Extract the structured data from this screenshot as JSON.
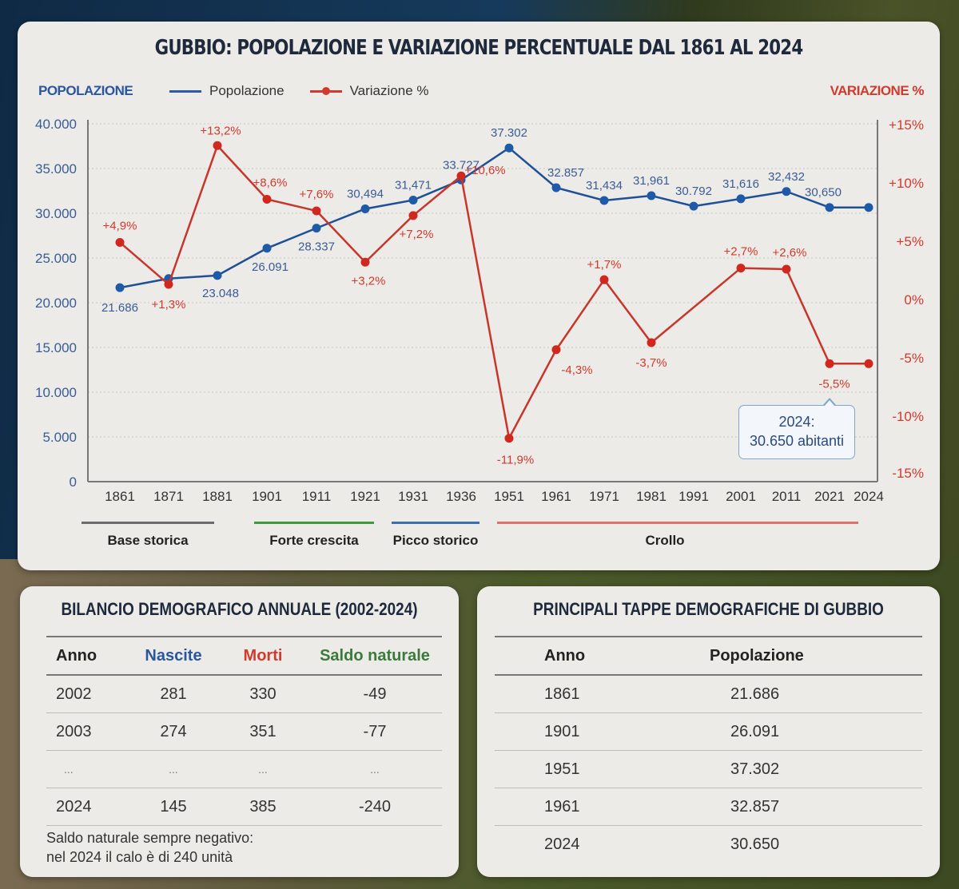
{
  "title": "GUBBIO: POPOLAZIONE E VARIAZIONE PERCENTUALE DAL 1861 AL 2024",
  "left_axis_title": "POPOLAZIONE",
  "right_axis_title": "VARIAZIONE %",
  "legend": {
    "population": "Popolazione",
    "variation": "Variazione %"
  },
  "callout": {
    "line1": "2024:",
    "line2": "30.650 abitanti"
  },
  "phases": [
    {
      "label": "Base storica",
      "color": "#6b6b6b"
    },
    {
      "label": "Forte crescita",
      "color": "#3d9a3d"
    },
    {
      "label": "Picco storico",
      "color": "#3a6fb0"
    },
    {
      "label": "Crollo",
      "color": "#e07070"
    }
  ],
  "colors": {
    "population": "#1f5aa8",
    "variation": "#d23a2e"
  },
  "chart_data": {
    "type": "line",
    "title": "GUBBIO: POPOLAZIONE E VARIAZIONE PERCENTUALE DAL 1861 AL 2024",
    "xlabel": "",
    "ylabel": "POPOLAZIONE",
    "y2label": "VARIAZIONE %",
    "categories": [
      "1861",
      "1871",
      "1881",
      "1901",
      "1911",
      "1921",
      "1931",
      "1936",
      "1951",
      "1961",
      "1971",
      "1981",
      "1991",
      "2001",
      "2011",
      "2021",
      "2024"
    ],
    "series": [
      {
        "name": "Popolazione",
        "axis": "left",
        "values": [
          21686,
          22700,
          23048,
          26091,
          28337,
          30494,
          31471,
          33727,
          37302,
          32857,
          31434,
          31961,
          30792,
          31616,
          32432,
          30650,
          30650
        ],
        "labels": [
          "21.686",
          "",
          "23.048",
          "26.091",
          "28.337",
          "30,494",
          "31,471",
          "33.727",
          "37.302",
          "32.857",
          "31,434",
          "31,961",
          "30.792",
          "31,616",
          "32,432",
          "30,650",
          ""
        ]
      },
      {
        "name": "Variazione %",
        "axis": "right",
        "values": [
          4.9,
          1.3,
          13.2,
          8.6,
          7.6,
          3.2,
          7.2,
          10.6,
          -11.9,
          -4.3,
          1.7,
          -3.7,
          null,
          2.7,
          2.6,
          -5.5,
          -5.5
        ],
        "labels": [
          "+4,9%",
          "+1,3%",
          "+13,2%",
          "+8,6%",
          "+7,6%",
          "+3,2%",
          "+7,2%",
          "+10,6%",
          "-11,9%",
          "-4,3%",
          "+1,7%",
          "-3,7%",
          "",
          "+2,7%",
          "+2,6%",
          "-5,5%",
          ""
        ]
      }
    ],
    "ylim": [
      0,
      40000
    ],
    "yticks": [
      "0",
      "5.000",
      "10.000",
      "15.000",
      "20.000",
      "25.000",
      "30.000",
      "35.000",
      "40.000"
    ],
    "y2lim": [
      -15,
      15
    ],
    "y2ticks": [
      "-15%",
      "-10%",
      "-5%",
      "0%",
      "+5%",
      "+10%",
      "+15%"
    ],
    "grid": true,
    "legend_position": "top"
  },
  "birth_table": {
    "title": "BILANCIO DEMOGRAFICO ANNUALE (2002-2024)",
    "headers": [
      "Anno",
      "Nascite",
      "Morti",
      "Saldo naturale"
    ],
    "rows": [
      [
        "2002",
        "281",
        "330",
        "-49"
      ],
      [
        "2003",
        "274",
        "351",
        "-77"
      ],
      [
        "...",
        "...",
        "...",
        "..."
      ],
      [
        "2024",
        "145",
        "385",
        "-240"
      ]
    ],
    "note_line1": "Saldo naturale sempre negativo:",
    "note_line2": "nel 2024 il calo è di 240 unità"
  },
  "milestones_table": {
    "title": "PRINCIPALI TAPPE DEMOGRAFICHE DI GUBBIO",
    "headers": [
      "Anno",
      "Popolazione"
    ],
    "rows": [
      [
        "1861",
        "21.686"
      ],
      [
        "1901",
        "26.091"
      ],
      [
        "1951",
        "37.302"
      ],
      [
        "1961",
        "32.857"
      ],
      [
        "2024",
        "30.650"
      ]
    ]
  }
}
